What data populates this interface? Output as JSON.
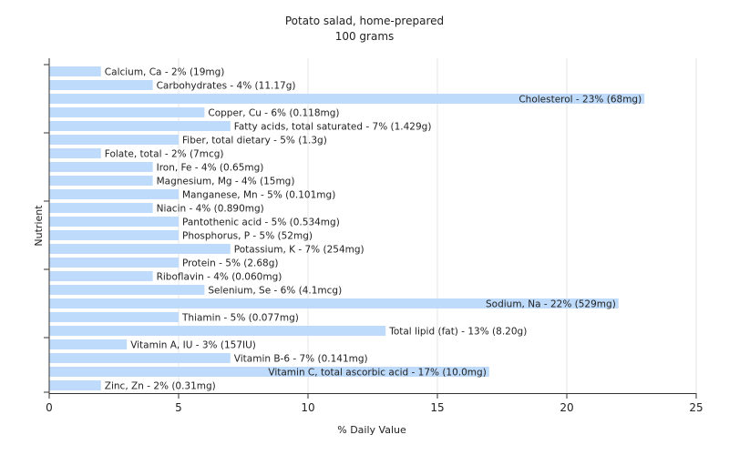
{
  "chart_data": {
    "type": "bar",
    "orientation": "horizontal",
    "title": "Potato salad, home-prepared",
    "subtitle": "100 grams",
    "xlabel": "% Daily Value",
    "ylabel": "Nutrient",
    "xlim": [
      0,
      25
    ],
    "xticks": [
      0,
      5,
      10,
      15,
      20,
      25
    ],
    "grid": true,
    "colors": {
      "bar": "#bfdbfb",
      "grid": "#e6e6e6",
      "axis": "#333333"
    },
    "categories": [
      "Calcium, Ca",
      "Carbohydrates",
      "Cholesterol",
      "Copper, Cu",
      "Fatty acids, total saturated",
      "Fiber, total dietary",
      "Folate, total",
      "Iron, Fe",
      "Magnesium, Mg",
      "Manganese, Mn",
      "Niacin",
      "Pantothenic acid",
      "Phosphorus, P",
      "Potassium, K",
      "Protein",
      "Riboflavin",
      "Selenium, Se",
      "Sodium, Na",
      "Thiamin",
      "Total lipid (fat)",
      "Vitamin A, IU",
      "Vitamin B-6",
      "Vitamin C, total ascorbic acid",
      "Zinc, Zn"
    ],
    "values": [
      2,
      4,
      23,
      6,
      7,
      5,
      2,
      4,
      4,
      5,
      4,
      5,
      5,
      7,
      5,
      4,
      6,
      22,
      5,
      13,
      3,
      7,
      17,
      2
    ],
    "labels": [
      "Calcium, Ca - 2% (19mg)",
      "Carbohydrates - 4% (11.17g)",
      "Cholesterol - 23% (68mg)",
      "Copper, Cu - 6% (0.118mg)",
      "Fatty acids, total saturated - 7% (1.429g)",
      "Fiber, total dietary - 5% (1.3g)",
      "Folate, total - 2% (7mcg)",
      "Iron, Fe - 4% (0.65mg)",
      "Magnesium, Mg - 4% (15mg)",
      "Manganese, Mn - 5% (0.101mg)",
      "Niacin - 4% (0.890mg)",
      "Pantothenic acid - 5% (0.534mg)",
      "Phosphorus, P - 5% (52mg)",
      "Potassium, K - 7% (254mg)",
      "Protein - 5% (2.68g)",
      "Riboflavin - 4% (0.060mg)",
      "Selenium, Se - 6% (4.1mcg)",
      "Sodium, Na - 22% (529mg)",
      "Thiamin - 5% (0.077mg)",
      "Total lipid (fat) - 13% (8.20g)",
      "Vitamin A, IU - 3% (157IU)",
      "Vitamin B-6 - 7% (0.141mg)",
      "Vitamin C, total ascorbic acid - 17% (10.0mg)",
      "Zinc, Zn - 2% (0.31mg)"
    ]
  }
}
